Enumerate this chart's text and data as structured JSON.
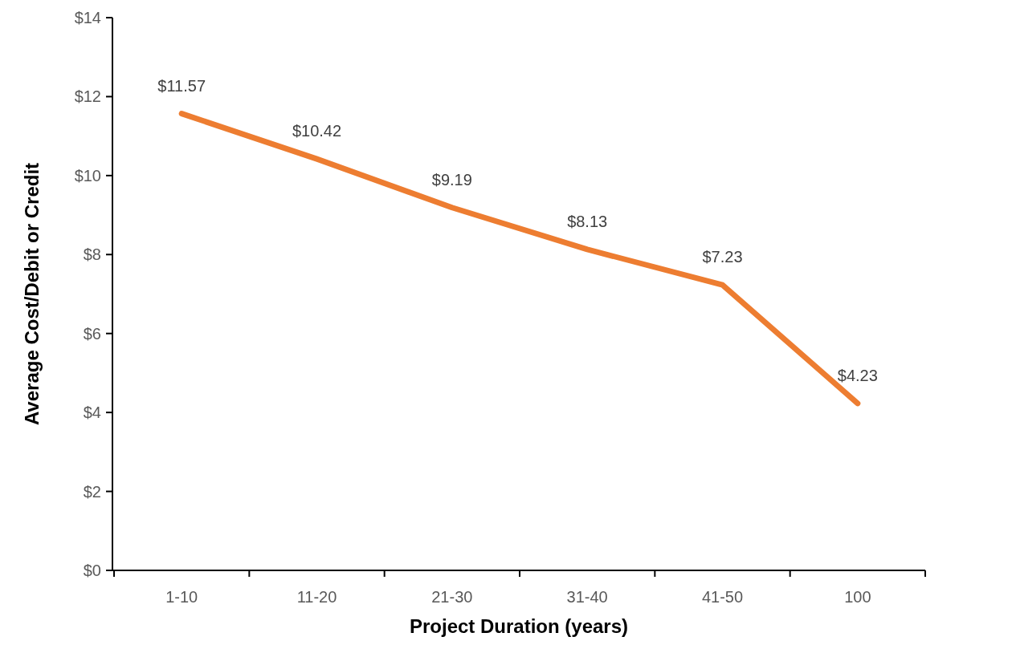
{
  "chart_data": {
    "type": "line",
    "xlabel": "Project Duration (years)",
    "ylabel": "Average Cost/Debit or Credit",
    "categories": [
      "1-10",
      "11-20",
      "21-30",
      "31-40",
      "41-50",
      "100"
    ],
    "series": [
      {
        "color": "#ed7d31",
        "values": [
          11.57,
          10.42,
          9.19,
          8.13,
          7.23,
          4.23
        ],
        "value_labels": [
          "$11.57",
          "$10.42",
          "$9.19",
          "$8.13",
          "$7.23",
          "$4.23"
        ]
      }
    ],
    "ylim": [
      0,
      14
    ],
    "yticks": [
      {
        "value": 0,
        "label": "$0"
      },
      {
        "value": 2,
        "label": "$2"
      },
      {
        "value": 4,
        "label": "$4"
      },
      {
        "value": 6,
        "label": "$6"
      },
      {
        "value": 8,
        "label": "$8"
      },
      {
        "value": 10,
        "label": "$10"
      },
      {
        "value": 12,
        "label": "$12"
      },
      {
        "value": 14,
        "label": "$14"
      }
    ],
    "grid": false,
    "marker": "none",
    "line_style": "solid"
  }
}
